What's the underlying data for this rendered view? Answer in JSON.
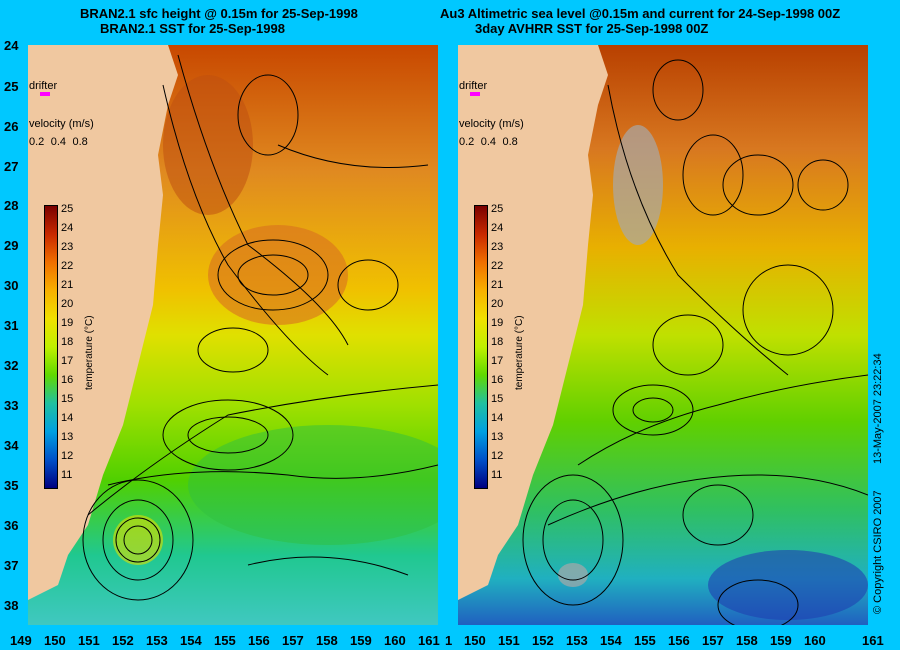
{
  "titles": {
    "left_line1": "BRAN2.1 sfc height @ 0.15m for 25-Sep-1998",
    "left_line2": "BRAN2.1 SST for 25-Sep-1998",
    "right_line1": "Au3 Altimetric sea level  @0.15m and current for 24-Sep-1998 00Z",
    "right_line2": "3day AVHRR SST for 25-Sep-1998 00Z"
  },
  "axes": {
    "lat_labels": [
      "24",
      "25",
      "26",
      "27",
      "28",
      "29",
      "30",
      "31",
      "32",
      "33",
      "34",
      "35",
      "36",
      "37",
      "38"
    ],
    "lon_labels": [
      "149",
      "150",
      "151",
      "152",
      "153",
      "154",
      "155",
      "156",
      "157",
      "158",
      "159",
      "160",
      "161"
    ],
    "lon_labels_right": [
      "1",
      "150",
      "151",
      "152",
      "153",
      "154",
      "155",
      "156",
      "157",
      "158",
      "159",
      "160",
      "161"
    ]
  },
  "legend": {
    "drifter": "drifter",
    "velocity": "velocity (m/s)",
    "velocity_scale": [
      "0.2",
      "0.4",
      "0.8"
    ],
    "colorbar_title": "temperature (°C)",
    "colorbar_ticks": [
      "25",
      "24",
      "23",
      "22",
      "21",
      "20",
      "19",
      "18",
      "17",
      "16",
      "15",
      "14",
      "13",
      "12",
      "11"
    ],
    "colorbar_colors": [
      "#7a0000",
      "#a81800",
      "#d04000",
      "#e06800",
      "#f09000",
      "#f8b800",
      "#f0e000",
      "#c8f000",
      "#80e000",
      "#30c800",
      "#00c0a0",
      "#00a0e0",
      "#0060d0",
      "#0028a8",
      "#000080"
    ]
  },
  "copyright": "© Copyright CSIRO 2007",
  "timestamp": "13-May-2007 23:22:34",
  "colors": {
    "background": "#00c8ff",
    "land": "#f0c8a0",
    "drifter": "#ff00ff"
  }
}
